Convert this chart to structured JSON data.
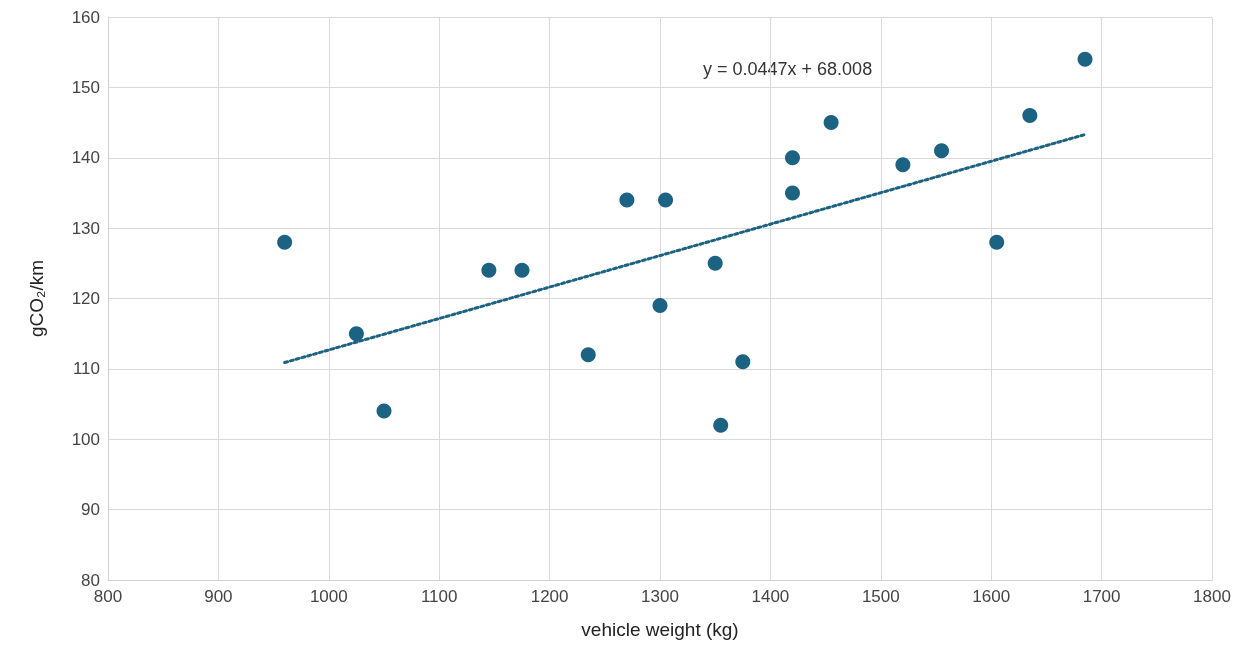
{
  "chart_data": {
    "type": "scatter",
    "xlabel": "vehicle weight (kg)",
    "ylabel": "gCO₂/km",
    "x": [
      960,
      1025,
      1050,
      1145,
      1175,
      1235,
      1270,
      1305,
      1300,
      1350,
      1355,
      1375,
      1420,
      1420,
      1455,
      1520,
      1555,
      1605,
      1635,
      1685
    ],
    "series": [
      {
        "color": "#1b6283",
        "values": [
          128,
          115,
          104,
          124,
          124,
          112,
          134,
          134,
          119,
          125,
          102,
          111,
          140,
          135,
          145,
          139,
          141,
          128,
          146,
          154
        ]
      },
      {
        "type": "line",
        "color": "#1b6283",
        "line_style": "dotted",
        "marker": "none",
        "x": [
          960,
          1685
        ],
        "values": [
          110.9,
          143.3
        ]
      }
    ],
    "xlim": [
      800,
      1800
    ],
    "xticks": [
      800,
      900,
      1000,
      1100,
      1200,
      1300,
      1400,
      1500,
      1600,
      1700,
      1800
    ],
    "ylim": [
      80,
      160
    ],
    "yticks": [
      80,
      90,
      100,
      110,
      120,
      130,
      140,
      150,
      160
    ],
    "grid": true,
    "marker": "circle",
    "annotations": [
      "y = 0.0447x + 68.008"
    ]
  }
}
